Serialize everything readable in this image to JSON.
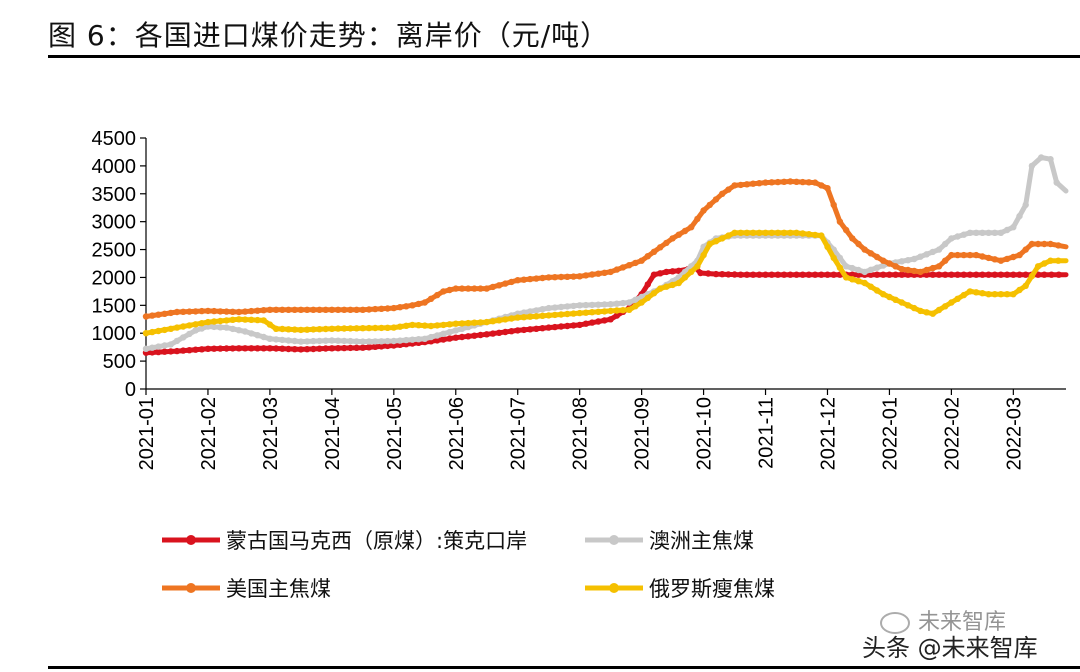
{
  "title": "图 6：各国进口煤价走势：离岸价（元/吨）",
  "watermark": "未来智库",
  "source_label": "头条 @未来智库",
  "chart_data": {
    "type": "line",
    "ylim": [
      0,
      4500
    ],
    "yticks": [
      0,
      500,
      1000,
      1500,
      2000,
      2500,
      3000,
      3500,
      4000,
      4500
    ],
    "x_ticks": [
      "2021-01",
      "2021-02",
      "2021-03",
      "2021-04",
      "2021-05",
      "2021-06",
      "2021-07",
      "2021-08",
      "2021-09",
      "2021-10",
      "2021-11",
      "2021-12",
      "2022-01",
      "2022-02",
      "2022-03"
    ],
    "x_range": [
      0,
      14.85
    ],
    "grid": false,
    "legend_position": "bottom",
    "series": [
      {
        "name": "蒙古国马克西（原煤）:策克口岸",
        "color": "#D9131E",
        "points": [
          [
            0,
            650
          ],
          [
            0.5,
            680
          ],
          [
            1,
            720
          ],
          [
            1.5,
            730
          ],
          [
            2,
            730
          ],
          [
            2.5,
            710
          ],
          [
            3,
            730
          ],
          [
            3.5,
            740
          ],
          [
            4,
            780
          ],
          [
            4.5,
            840
          ],
          [
            5,
            920
          ],
          [
            5.5,
            980
          ],
          [
            6,
            1050
          ],
          [
            6.5,
            1100
          ],
          [
            7,
            1150
          ],
          [
            7.5,
            1250
          ],
          [
            7.8,
            1450
          ],
          [
            8,
            1700
          ],
          [
            8.2,
            2050
          ],
          [
            8.4,
            2100
          ],
          [
            8.6,
            2120
          ],
          [
            8.75,
            2150
          ],
          [
            8.85,
            2200
          ],
          [
            8.95,
            2080
          ],
          [
            9.2,
            2060
          ],
          [
            9.6,
            2050
          ],
          [
            10,
            2050
          ],
          [
            10.5,
            2050
          ],
          [
            11,
            2050
          ],
          [
            11.5,
            2050
          ],
          [
            12,
            2050
          ],
          [
            12.5,
            2050
          ],
          [
            13,
            2050
          ],
          [
            13.5,
            2050
          ],
          [
            14,
            2050
          ],
          [
            14.5,
            2050
          ],
          [
            14.85,
            2050
          ]
        ]
      },
      {
        "name": "澳洲主焦煤",
        "color": "#C8C8C8",
        "points": [
          [
            0,
            720
          ],
          [
            0.4,
            800
          ],
          [
            0.8,
            1050
          ],
          [
            1,
            1120
          ],
          [
            1.3,
            1100
          ],
          [
            1.6,
            1030
          ],
          [
            2,
            900
          ],
          [
            2.5,
            850
          ],
          [
            3,
            870
          ],
          [
            3.5,
            850
          ],
          [
            4,
            860
          ],
          [
            4.5,
            900
          ],
          [
            5,
            1050
          ],
          [
            5.5,
            1200
          ],
          [
            6,
            1350
          ],
          [
            6.5,
            1450
          ],
          [
            7,
            1500
          ],
          [
            7.5,
            1520
          ],
          [
            7.8,
            1550
          ],
          [
            8,
            1650
          ],
          [
            8.3,
            1800
          ],
          [
            8.6,
            2000
          ],
          [
            8.9,
            2300
          ],
          [
            9,
            2550
          ],
          [
            9.2,
            2700
          ],
          [
            9.5,
            2750
          ],
          [
            10,
            2750
          ],
          [
            10.5,
            2750
          ],
          [
            10.9,
            2750
          ],
          [
            11.1,
            2500
          ],
          [
            11.3,
            2200
          ],
          [
            11.6,
            2100
          ],
          [
            12,
            2250
          ],
          [
            12.4,
            2330
          ],
          [
            12.8,
            2500
          ],
          [
            13,
            2700
          ],
          [
            13.3,
            2800
          ],
          [
            13.8,
            2800
          ],
          [
            14,
            2900
          ],
          [
            14.2,
            3300
          ],
          [
            14.3,
            4000
          ],
          [
            14.45,
            4150
          ],
          [
            14.6,
            4120
          ],
          [
            14.7,
            3700
          ],
          [
            14.85,
            3550
          ]
        ]
      },
      {
        "name": "美国主焦煤",
        "color": "#EE7522",
        "points": [
          [
            0,
            1300
          ],
          [
            0.5,
            1380
          ],
          [
            1,
            1400
          ],
          [
            1.5,
            1380
          ],
          [
            2,
            1420
          ],
          [
            2.5,
            1420
          ],
          [
            3,
            1420
          ],
          [
            3.5,
            1420
          ],
          [
            4,
            1450
          ],
          [
            4.3,
            1500
          ],
          [
            4.5,
            1550
          ],
          [
            4.8,
            1750
          ],
          [
            5,
            1800
          ],
          [
            5.5,
            1800
          ],
          [
            6,
            1950
          ],
          [
            6.5,
            2000
          ],
          [
            7,
            2020
          ],
          [
            7.5,
            2100
          ],
          [
            8,
            2300
          ],
          [
            8.5,
            2700
          ],
          [
            8.8,
            2900
          ],
          [
            9,
            3200
          ],
          [
            9.3,
            3500
          ],
          [
            9.5,
            3650
          ],
          [
            10,
            3700
          ],
          [
            10.4,
            3720
          ],
          [
            10.8,
            3700
          ],
          [
            11,
            3600
          ],
          [
            11.2,
            3000
          ],
          [
            11.4,
            2700
          ],
          [
            11.6,
            2500
          ],
          [
            11.9,
            2300
          ],
          [
            12.2,
            2150
          ],
          [
            12.5,
            2100
          ],
          [
            12.8,
            2200
          ],
          [
            13,
            2400
          ],
          [
            13.4,
            2400
          ],
          [
            13.8,
            2300
          ],
          [
            14.1,
            2400
          ],
          [
            14.3,
            2600
          ],
          [
            14.6,
            2600
          ],
          [
            14.85,
            2550
          ]
        ]
      },
      {
        "name": "俄罗斯瘦焦煤",
        "color": "#F5C000",
        "points": [
          [
            0,
            1000
          ],
          [
            0.5,
            1100
          ],
          [
            1,
            1200
          ],
          [
            1.5,
            1250
          ],
          [
            1.9,
            1230
          ],
          [
            2.1,
            1080
          ],
          [
            2.5,
            1060
          ],
          [
            3,
            1080
          ],
          [
            3.5,
            1090
          ],
          [
            4,
            1100
          ],
          [
            4.3,
            1150
          ],
          [
            4.6,
            1130
          ],
          [
            5,
            1170
          ],
          [
            5.5,
            1200
          ],
          [
            6,
            1280
          ],
          [
            6.5,
            1320
          ],
          [
            7,
            1360
          ],
          [
            7.5,
            1400
          ],
          [
            7.8,
            1420
          ],
          [
            8,
            1550
          ],
          [
            8.3,
            1800
          ],
          [
            8.6,
            1900
          ],
          [
            8.9,
            2200
          ],
          [
            9.1,
            2600
          ],
          [
            9.5,
            2800
          ],
          [
            10,
            2800
          ],
          [
            10.5,
            2800
          ],
          [
            10.9,
            2750
          ],
          [
            11.1,
            2350
          ],
          [
            11.3,
            2000
          ],
          [
            11.6,
            1900
          ],
          [
            11.9,
            1700
          ],
          [
            12.2,
            1550
          ],
          [
            12.5,
            1400
          ],
          [
            12.7,
            1350
          ],
          [
            13,
            1550
          ],
          [
            13.3,
            1750
          ],
          [
            13.6,
            1700
          ],
          [
            14,
            1700
          ],
          [
            14.2,
            1850
          ],
          [
            14.4,
            2200
          ],
          [
            14.6,
            2300
          ],
          [
            14.85,
            2300
          ]
        ]
      }
    ]
  }
}
